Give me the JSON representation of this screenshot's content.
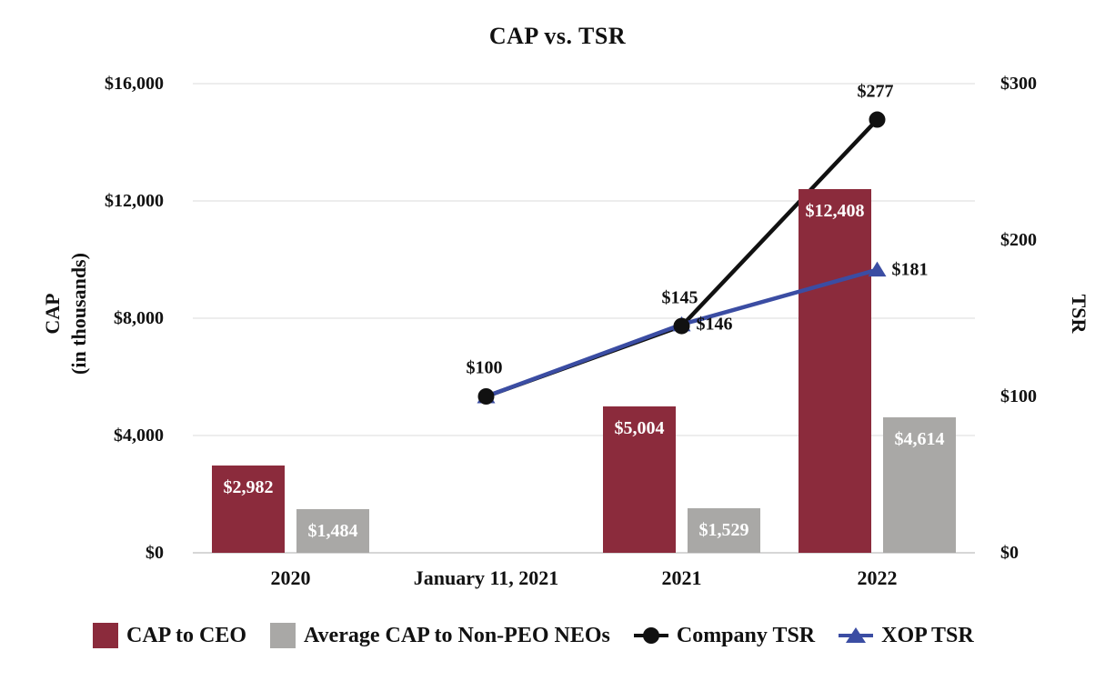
{
  "title": "CAP vs. TSR",
  "left_axis": {
    "title_line1": "CAP",
    "title_line2": "(in thousands)",
    "ticks": [
      "$16,000",
      "$12,000",
      "$8,000",
      "$4,000",
      "$0"
    ]
  },
  "right_axis": {
    "title": "TSR",
    "ticks": [
      "$300",
      "$200",
      "$100",
      "$0"
    ]
  },
  "colors": {
    "cap_to_ceo": "#8b2b3c",
    "avg_cap_non_peo": "#a9a8a6",
    "company_tsr": "#111111",
    "xop_tsr": "#3b4da3",
    "gridline": "#ededed",
    "axis_line": "#d6d6d6"
  },
  "chart_data": {
    "type": "combo-bar-line",
    "x_categories": [
      "2020",
      "January 11, 2021",
      "2021",
      "2022"
    ],
    "left_ylim": [
      0,
      16000
    ],
    "right_ylim": [
      0,
      300
    ],
    "grid": "horizontal-only",
    "bar_series": [
      {
        "name": "CAP to CEO",
        "color": "#8b2b3c",
        "category_slots": [
          0,
          2,
          3
        ],
        "values": [
          2982,
          5004,
          12408
        ],
        "labels": [
          "$2,982",
          "$5,004",
          "$12,408"
        ]
      },
      {
        "name": "Average CAP to Non-PEO NEOs",
        "color": "#a9a8a6",
        "category_slots": [
          0,
          2,
          3
        ],
        "values": [
          1484,
          1529,
          4614
        ],
        "labels": [
          "$1,484",
          "$1,529",
          "$4,614"
        ]
      }
    ],
    "line_series": [
      {
        "name": "Company TSR",
        "color": "#111111",
        "marker": "circle",
        "axis": "right",
        "label_side": "above",
        "category_slots": [
          1,
          2,
          3
        ],
        "values": [
          100,
          145,
          277
        ],
        "labels": [
          "$100",
          "$145",
          "$277"
        ]
      },
      {
        "name": "XOP TSR",
        "color": "#3b4da3",
        "marker": "triangle",
        "axis": "right",
        "label_side": "right",
        "category_slots": [
          1,
          2,
          3
        ],
        "values": [
          100,
          146,
          181
        ],
        "labels": [
          "",
          "$146",
          "$181"
        ]
      }
    ],
    "legend_position": "bottom"
  },
  "legend": [
    {
      "type": "square",
      "color": "#8b2b3c",
      "label": "CAP to CEO"
    },
    {
      "type": "square",
      "color": "#a9a8a6",
      "label": "Average CAP to Non-PEO NEOs"
    },
    {
      "type": "line-circle",
      "color": "#111111",
      "label": "Company TSR"
    },
    {
      "type": "line-triangle",
      "color": "#3b4da3",
      "label": "XOP TSR"
    }
  ]
}
